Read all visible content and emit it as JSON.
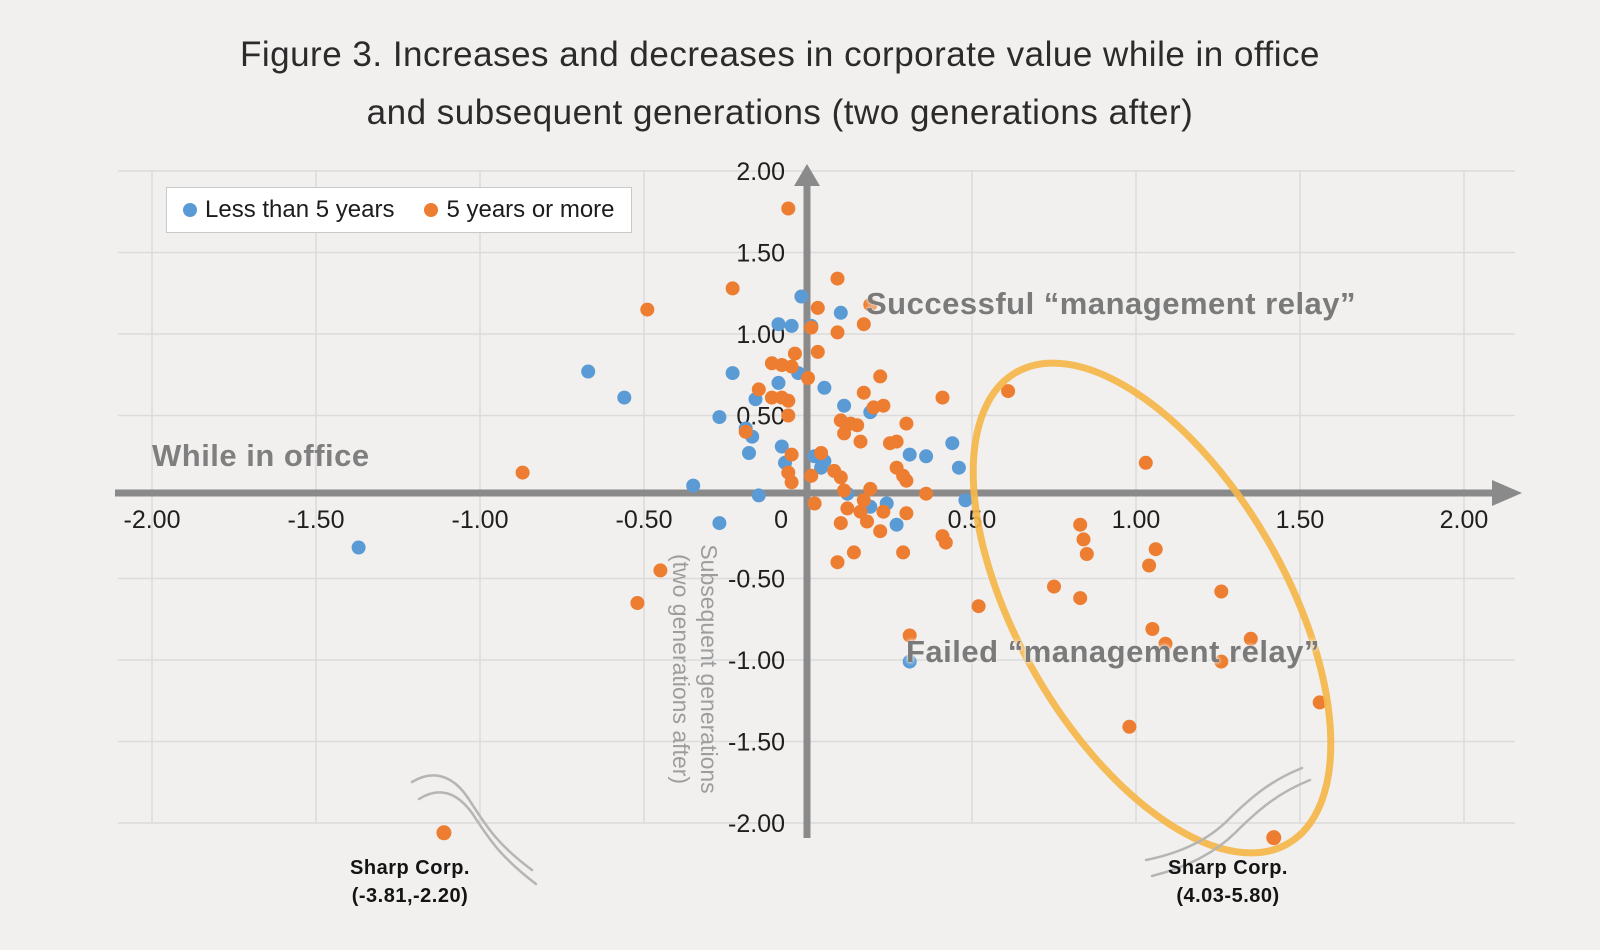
{
  "title": {
    "line1": "Figure 3. Increases and decreases in corporate value while in office",
    "line2": "and subsequent generations (two generations after)"
  },
  "legend": {
    "items": [
      {
        "label": "Less than 5 years",
        "color": "#5B9BD5"
      },
      {
        "label": "5 years or more",
        "color": "#ED7D31"
      }
    ]
  },
  "annotations": {
    "successful": "Successful “management relay”",
    "failed": "Failed “management relay”"
  },
  "axis_titles": {
    "x": "While in office",
    "y_line1": "Subsequent generations",
    "y_line2": "(two generations after)"
  },
  "outlier_callouts": [
    {
      "name": "Sharp Corp.",
      "coords": "(-3.81,-2.20)"
    },
    {
      "name": "Sharp Corp.",
      "coords": "(4.03-5.80)"
    }
  ],
  "colors": {
    "blue": "#5B9BD5",
    "orange": "#ED7D31",
    "grid": "#dbdbdb",
    "axis": "#8a8a8a",
    "ellipse": "#F5B64A",
    "squiggle": "#b5b5b5",
    "tick_text": "#1f1f1f"
  },
  "chart_data": {
    "type": "scatter",
    "title": "Figure 3. Increases and decreases in corporate value while in office and subsequent generations (two generations after)",
    "xlabel": "While in office",
    "ylabel": "Subsequent generations (two generations after)",
    "xlim": [
      -2.0,
      2.0
    ],
    "ylim": [
      -2.0,
      2.0
    ],
    "grid": true,
    "legend_position": "top-left",
    "x_ticks": {
      "values": [
        -2,
        -1.5,
        -1,
        -0.5,
        0,
        0.5,
        1,
        1.5,
        2
      ],
      "labels": [
        "-2.00",
        "-1.50",
        "-1.00",
        "-0.50",
        "0",
        "0.50",
        "1.00",
        "1.50",
        "2.00"
      ]
    },
    "y_ticks": {
      "values": [
        2,
        1.5,
        1,
        0.5,
        -0.5,
        -1,
        -1.5,
        -2
      ],
      "labels": [
        "2.00",
        "1.50",
        "1.00",
        "0.50",
        "-0.50",
        "-1.00",
        "-1.50",
        "-2.00"
      ]
    },
    "series": [
      {
        "name": "Less than 5 years",
        "color": "#5B9BD5",
        "points": [
          [
            -0.02,
            1.23
          ],
          [
            0.1,
            1.13
          ],
          [
            -0.09,
            1.06
          ],
          [
            -0.05,
            1.05
          ],
          [
            0.01,
            1.05
          ],
          [
            -0.67,
            0.77
          ],
          [
            -0.56,
            0.61
          ],
          [
            -0.23,
            0.76
          ],
          [
            -0.03,
            0.76
          ],
          [
            -0.09,
            0.7
          ],
          [
            0.05,
            0.67
          ],
          [
            -0.16,
            0.6
          ],
          [
            -0.27,
            0.49
          ],
          [
            0.11,
            0.56
          ],
          [
            0.19,
            0.52
          ],
          [
            0.31,
            0.26
          ],
          [
            0.36,
            0.25
          ],
          [
            0.44,
            0.33
          ],
          [
            0.46,
            0.18
          ],
          [
            -0.19,
            0.42
          ],
          [
            -0.17,
            0.37
          ],
          [
            -0.18,
            0.27
          ],
          [
            -0.08,
            0.31
          ],
          [
            -0.07,
            0.21
          ],
          [
            -0.35,
            0.07
          ],
          [
            -0.15,
            0.01
          ],
          [
            0.02,
            0.25
          ],
          [
            0.05,
            0.22
          ],
          [
            0.04,
            0.18
          ],
          [
            0.12,
            0.02
          ],
          [
            0.48,
            -0.02
          ],
          [
            0.19,
            -0.06
          ],
          [
            0.24,
            -0.04
          ],
          [
            0.27,
            -0.17
          ],
          [
            -0.27,
            -0.16
          ],
          [
            -1.37,
            -0.31
          ],
          [
            0.31,
            -1.01
          ]
        ]
      },
      {
        "name": "5 years or more",
        "color": "#ED7D31",
        "points": [
          [
            -0.06,
            1.77
          ],
          [
            0.09,
            1.34
          ],
          [
            -0.23,
            1.28
          ],
          [
            0.19,
            1.18
          ],
          [
            0.03,
            1.16
          ],
          [
            -0.49,
            1.15
          ],
          [
            0.01,
            1.04
          ],
          [
            0.17,
            1.06
          ],
          [
            0.09,
            1.01
          ],
          [
            -0.04,
            0.88
          ],
          [
            0.03,
            0.89
          ],
          [
            -0.11,
            0.82
          ],
          [
            -0.08,
            0.81
          ],
          [
            -0.05,
            0.8
          ],
          [
            0.22,
            0.74
          ],
          [
            0.0,
            0.73
          ],
          [
            -0.15,
            0.66
          ],
          [
            0.17,
            0.64
          ],
          [
            -0.11,
            0.61
          ],
          [
            -0.08,
            0.61
          ],
          [
            -0.06,
            0.59
          ],
          [
            0.41,
            0.61
          ],
          [
            0.61,
            0.65
          ],
          [
            0.2,
            0.55
          ],
          [
            0.23,
            0.56
          ],
          [
            -0.06,
            0.5
          ],
          [
            0.1,
            0.47
          ],
          [
            0.13,
            0.45
          ],
          [
            0.15,
            0.44
          ],
          [
            0.3,
            0.45
          ],
          [
            -0.19,
            0.4
          ],
          [
            0.11,
            0.39
          ],
          [
            0.16,
            0.34
          ],
          [
            0.25,
            0.33
          ],
          [
            0.27,
            0.34
          ],
          [
            -0.05,
            0.26
          ],
          [
            0.04,
            0.27
          ],
          [
            0.27,
            0.18
          ],
          [
            0.29,
            0.13
          ],
          [
            0.3,
            0.1
          ],
          [
            -0.87,
            0.15
          ],
          [
            -0.06,
            0.15
          ],
          [
            0.01,
            0.13
          ],
          [
            0.08,
            0.16
          ],
          [
            0.1,
            0.12
          ],
          [
            -0.05,
            0.09
          ],
          [
            0.11,
            0.04
          ],
          [
            0.19,
            0.05
          ],
          [
            0.36,
            0.02
          ],
          [
            1.03,
            0.21
          ],
          [
            0.02,
            -0.04
          ],
          [
            0.17,
            -0.02
          ],
          [
            0.12,
            -0.07
          ],
          [
            0.16,
            -0.09
          ],
          [
            0.23,
            -0.09
          ],
          [
            0.3,
            -0.1
          ],
          [
            0.1,
            -0.16
          ],
          [
            0.18,
            -0.15
          ],
          [
            0.22,
            -0.21
          ],
          [
            0.41,
            -0.24
          ],
          [
            0.42,
            -0.28
          ],
          [
            0.29,
            -0.34
          ],
          [
            0.14,
            -0.34
          ],
          [
            0.09,
            -0.4
          ],
          [
            -0.45,
            -0.45
          ],
          [
            -0.52,
            -0.65
          ],
          [
            0.52,
            -0.67
          ],
          [
            0.31,
            -0.85
          ],
          [
            0.83,
            -0.17
          ],
          [
            0.84,
            -0.26
          ],
          [
            0.85,
            -0.35
          ],
          [
            1.06,
            -0.32
          ],
          [
            1.04,
            -0.42
          ],
          [
            0.75,
            -0.55
          ],
          [
            0.83,
            -0.62
          ],
          [
            1.26,
            -0.58
          ],
          [
            1.05,
            -0.81
          ],
          [
            1.09,
            -0.9
          ],
          [
            1.35,
            -0.87
          ],
          [
            1.26,
            -1.01
          ],
          [
            1.56,
            -1.26
          ],
          [
            0.98,
            -1.41
          ]
        ]
      }
    ],
    "outliers": [
      {
        "label": "Sharp Corp.",
        "value_label": "(-3.81,-2.20)",
        "series": "5 years or more",
        "display_xy": [
          -1.11,
          -2.06
        ],
        "axis_break": true
      },
      {
        "label": "Sharp Corp.",
        "value_label": "(4.03-5.80)",
        "series": "5 years or more",
        "display_xy": [
          1.42,
          -2.09
        ],
        "axis_break": true
      }
    ],
    "highlight_ellipse": {
      "note": "circles the failed management-relay cluster",
      "center_xy": [
        1.05,
        -0.68
      ],
      "color": "#F5B64A"
    }
  }
}
